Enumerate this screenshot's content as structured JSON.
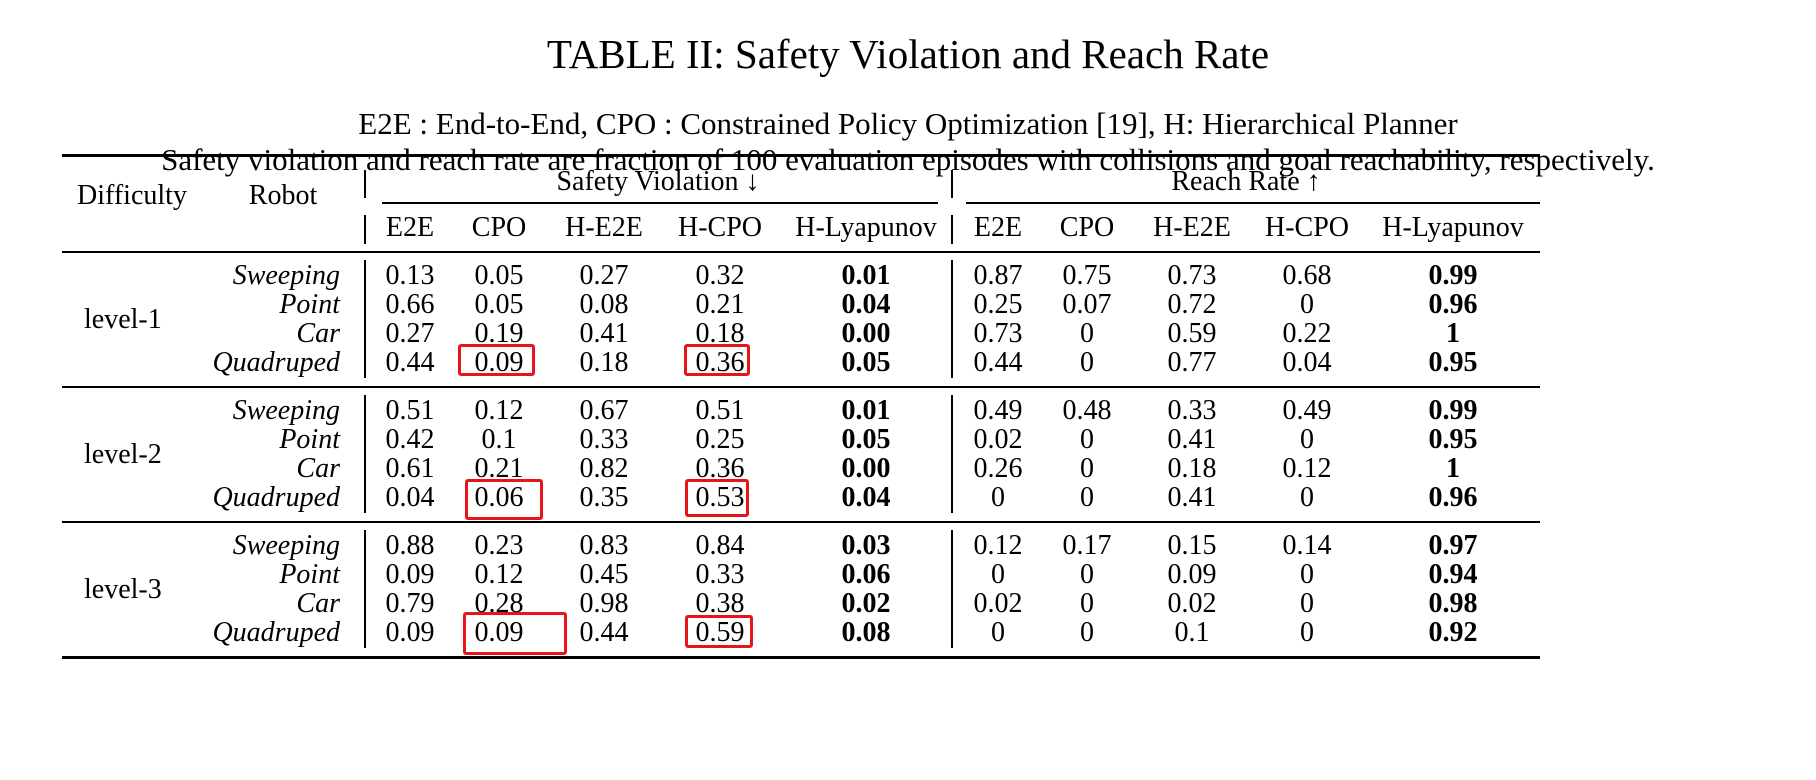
{
  "table": {
    "title": "TABLE II: Safety Violation and Reach Rate",
    "caption_line1": "E2E : End-to-End, CPO : Constrained Policy Optimization [19], H: Hierarchical Planner",
    "caption_line2": "Safety violation and reach rate are fraction of 100 evaluation episodes with collisions and goal reachability, respectively.",
    "headers": {
      "difficulty": "Difficulty",
      "robot": "Robot",
      "safety_group": "Safety Violation ↓",
      "reach_group": "Reach Rate ↑",
      "methods": [
        "E2E",
        "CPO",
        "H-E2E",
        "H-CPO",
        "H-Lyapunov"
      ]
    },
    "groups": [
      {
        "level": "level-1",
        "rows": [
          {
            "robot": "Sweeping",
            "safety": [
              "0.13",
              "0.05",
              "0.27",
              "0.32",
              "0.01"
            ],
            "reach": [
              "0.87",
              "0.75",
              "0.73",
              "0.68",
              "0.99"
            ]
          },
          {
            "robot": "Point",
            "safety": [
              "0.66",
              "0.05",
              "0.08",
              "0.21",
              "0.04"
            ],
            "reach": [
              "0.25",
              "0.07",
              "0.72",
              "0",
              "0.96"
            ]
          },
          {
            "robot": "Car",
            "safety": [
              "0.27",
              "0.19",
              "0.41",
              "0.18",
              "0.00"
            ],
            "reach": [
              "0.73",
              "0",
              "0.59",
              "0.22",
              "1"
            ]
          },
          {
            "robot": "Quadruped",
            "safety": [
              "0.44",
              "0.09",
              "0.18",
              "0.36",
              "0.05"
            ],
            "reach": [
              "0.44",
              "0",
              "0.77",
              "0.04",
              "0.95"
            ]
          }
        ]
      },
      {
        "level": "level-2",
        "rows": [
          {
            "robot": "Sweeping",
            "safety": [
              "0.51",
              "0.12",
              "0.67",
              "0.51",
              "0.01"
            ],
            "reach": [
              "0.49",
              "0.48",
              "0.33",
              "0.49",
              "0.99"
            ]
          },
          {
            "robot": "Point",
            "safety": [
              "0.42",
              "0.1",
              "0.33",
              "0.25",
              "0.05"
            ],
            "reach": [
              "0.02",
              "0",
              "0.41",
              "0",
              "0.95"
            ]
          },
          {
            "robot": "Car",
            "safety": [
              "0.61",
              "0.21",
              "0.82",
              "0.36",
              "0.00"
            ],
            "reach": [
              "0.26",
              "0",
              "0.18",
              "0.12",
              "1"
            ]
          },
          {
            "robot": "Quadruped",
            "safety": [
              "0.04",
              "0.06",
              "0.35",
              "0.53",
              "0.04"
            ],
            "reach": [
              "0",
              "0",
              "0.41",
              "0",
              "0.96"
            ]
          }
        ]
      },
      {
        "level": "level-3",
        "rows": [
          {
            "robot": "Sweeping",
            "safety": [
              "0.88",
              "0.23",
              "0.83",
              "0.84",
              "0.03"
            ],
            "reach": [
              "0.12",
              "0.17",
              "0.15",
              "0.14",
              "0.97"
            ]
          },
          {
            "robot": "Point",
            "safety": [
              "0.09",
              "0.12",
              "0.45",
              "0.33",
              "0.06"
            ],
            "reach": [
              "0",
              "0",
              "0.09",
              "0",
              "0.94"
            ]
          },
          {
            "robot": "Car",
            "safety": [
              "0.79",
              "0.28",
              "0.98",
              "0.38",
              "0.02"
            ],
            "reach": [
              "0.02",
              "0",
              "0.02",
              "0",
              "0.98"
            ]
          },
          {
            "robot": "Quadruped",
            "safety": [
              "0.09",
              "0.09",
              "0.44",
              "0.59",
              "0.08"
            ],
            "reach": [
              "0",
              "0",
              "0.1",
              "0",
              "0.92"
            ]
          }
        ]
      }
    ],
    "highlight_color": "#e8141c"
  }
}
